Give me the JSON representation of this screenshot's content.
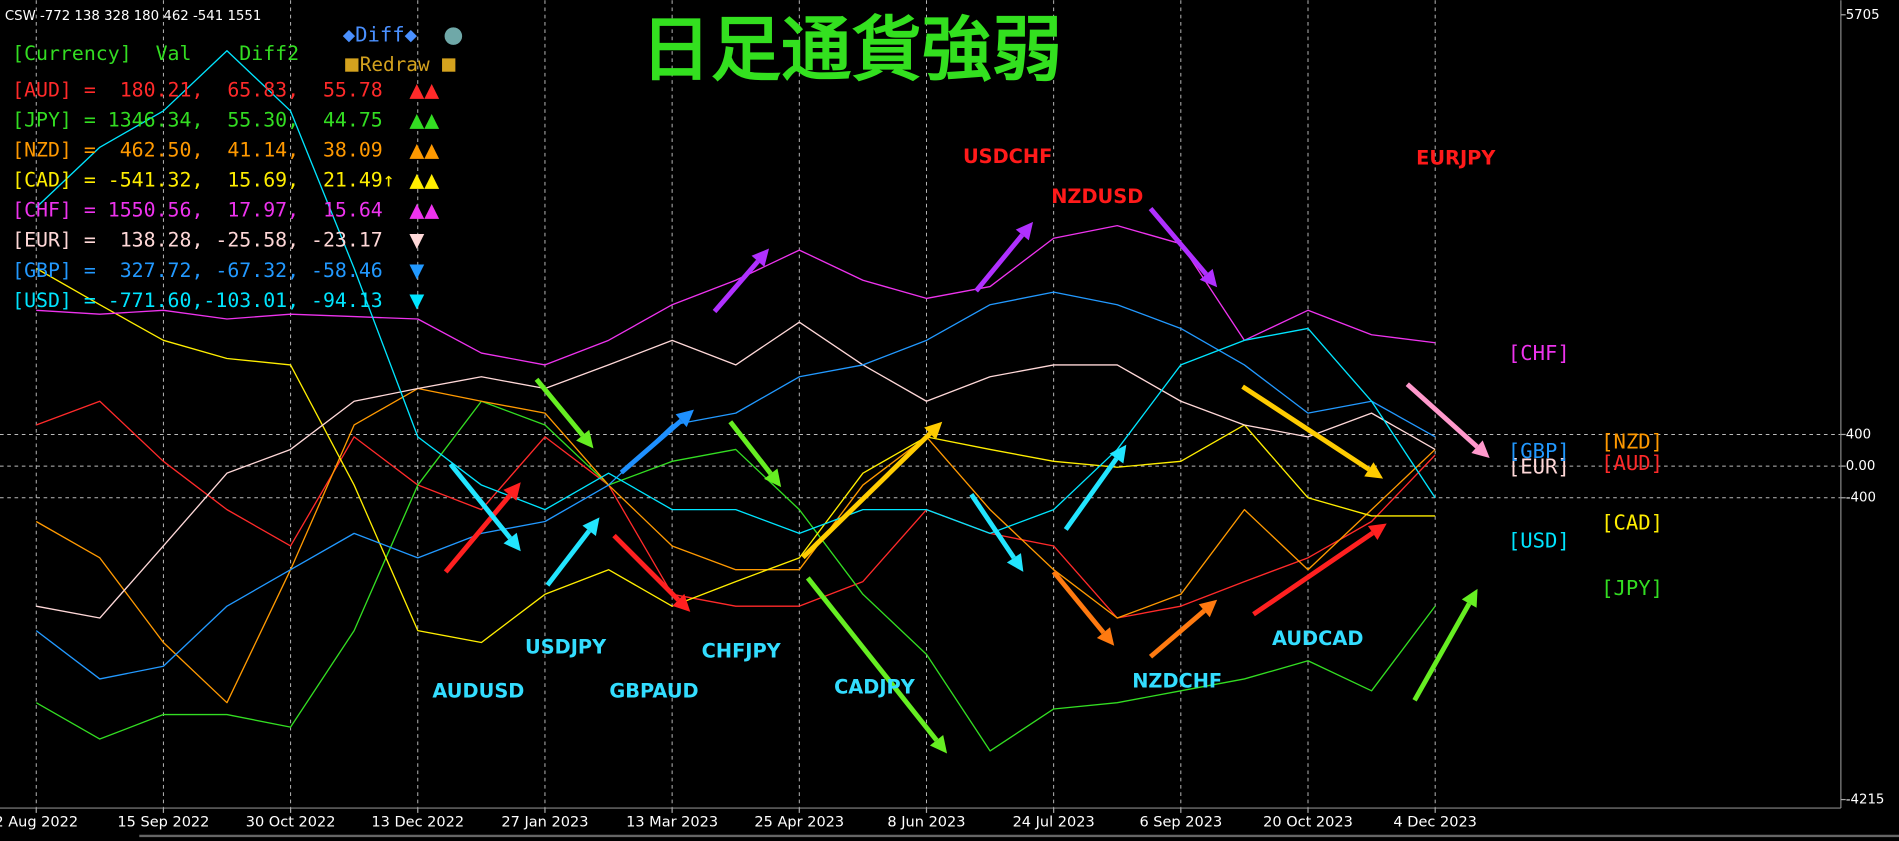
{
  "chart_data": {
    "type": "line",
    "header": "CSW -772 138 328 180 462 -541 1551",
    "title": "日足通貨強弱",
    "title_color": "#33e01f",
    "controls": {
      "diff_button": "◆Diff◆",
      "circle": "●",
      "redraw_button": "Redraw"
    },
    "panel": {
      "header": "[Currency]  Val    Diff2",
      "rows": [
        {
          "text": "[AUD] =  180.21,  65.83,  55.78",
          "mark": "▲▲"
        },
        {
          "text": "[JPY] = 1346.34,  55.30,  44.75",
          "mark": "▲▲"
        },
        {
          "text": "[NZD] =  462.50,  41.14,  38.09",
          "mark": "▲▲"
        },
        {
          "text": "[CAD] = -541.32,  15.69,  21.49↑",
          "mark": "▲▲"
        },
        {
          "text": "[CHF] = 1550.56,  17.97,  15.64",
          "mark": "▲▲"
        },
        {
          "text": "[EUR] =  138.28, -25.58, -23.17",
          "mark": "▼"
        },
        {
          "text": "[GBP] =  327.72, -67.32, -58.46",
          "mark": "▼"
        },
        {
          "text": "[USD] = -771.60,-103.01, -94.13",
          "mark": "▼"
        }
      ]
    },
    "x": [
      0,
      1,
      2,
      3,
      4,
      5,
      6,
      7,
      8,
      9,
      10,
      11,
      12,
      13,
      14,
      15,
      16,
      17,
      18,
      19,
      20,
      21,
      22
    ],
    "xlim": [
      -0.57,
      28.38
    ],
    "xticks": [
      {
        "value": 0,
        "label": "2 Aug 2022"
      },
      {
        "value": 2,
        "label": "15 Sep 2022"
      },
      {
        "value": 4,
        "label": "30 Oct 2022"
      },
      {
        "value": 6,
        "label": "13 Dec 2022"
      },
      {
        "value": 8,
        "label": "27 Jan 2023"
      },
      {
        "value": 10,
        "label": "13 Mar 2023"
      },
      {
        "value": 12,
        "label": "25 Apr 2023"
      },
      {
        "value": 14,
        "label": "8 Jun 2023"
      },
      {
        "value": 16,
        "label": "24 Jul 2023"
      },
      {
        "value": 18,
        "label": "6 Sep 2023"
      },
      {
        "value": 20,
        "label": "20 Oct 2023"
      },
      {
        "value": 22,
        "label": "4 Dec 2023"
      }
    ],
    "ylim": [
      -4215,
      5705
    ],
    "yticks": [
      5705,
      400,
      {
        "value": 0,
        "label": "0.00"
      },
      -400,
      -4215
    ],
    "grid": true,
    "series": [
      {
        "name": "[AUD]",
        "color": "#ff2a2a",
        "values": [
          520,
          820,
          60,
          -550,
          -1010,
          370,
          -240,
          -550,
          370,
          -240,
          -1620,
          -1770,
          -1770,
          -1460,
          -550,
          -850,
          -1010,
          -1920,
          -1770,
          -1460,
          -1160,
          -700,
          140
        ]
      },
      {
        "name": "[JPY]",
        "color": "#33dd22",
        "values": [
          -2990,
          -3450,
          -3140,
          -3140,
          -3300,
          -2080,
          -240,
          820,
          520,
          -240,
          60,
          210,
          -550,
          -1620,
          -2380,
          -3600,
          -3070,
          -2990,
          -2840,
          -2690,
          -2460,
          -2840,
          -1770
        ]
      },
      {
        "name": "[NZD]",
        "color": "#ff9900",
        "values": [
          -700,
          -1160,
          -2230,
          -2990,
          -1310,
          520,
          980,
          820,
          670,
          -240,
          -1010,
          -1310,
          -1310,
          -240,
          370,
          -550,
          -1310,
          -1920,
          -1620,
          -550,
          -1310,
          -550,
          210
        ]
      },
      {
        "name": "[CAD]",
        "color": "#ffee00",
        "values": [
          2500,
          2040,
          1590,
          1360,
          1280,
          -240,
          -2080,
          -2230,
          -1620,
          -1310,
          -1770,
          -1460,
          -1160,
          -90,
          370,
          210,
          60,
          -15,
          60,
          520,
          -400,
          -630,
          -630
        ]
      },
      {
        "name": "[CHF]",
        "color": "#ee33ee",
        "values": [
          1970,
          1920,
          1970,
          1860,
          1920,
          1890,
          1860,
          1430,
          1280,
          1590,
          2040,
          2350,
          2730,
          2350,
          2120,
          2270,
          2880,
          3040,
          2810,
          1590,
          1970,
          1660,
          1560
        ]
      },
      {
        "name": "[EUR]",
        "color": "#ffd8d8",
        "values": [
          -1770,
          -1920,
          -1010,
          -90,
          210,
          820,
          980,
          1130,
          980,
          1280,
          1590,
          1280,
          1820,
          1280,
          820,
          1130,
          1280,
          1280,
          820,
          520,
          370,
          670,
          210
        ]
      },
      {
        "name": "[GBP]",
        "color": "#2299ff",
        "values": [
          -2080,
          -2690,
          -2530,
          -1770,
          -1310,
          -850,
          -1160,
          -850,
          -700,
          -240,
          520,
          670,
          1130,
          1280,
          1590,
          2040,
          2200,
          2040,
          1740,
          1280,
          670,
          820,
          370
        ]
      },
      {
        "name": "[USD]",
        "color": "#00e5ff",
        "values": [
          3270,
          4030,
          4490,
          5250,
          4490,
          2500,
          370,
          -240,
          -550,
          -90,
          -550,
          -550,
          -850,
          -550,
          -550,
          -850,
          -550,
          210,
          1280,
          1590,
          1740,
          820,
          -400
        ]
      }
    ],
    "annotations": [
      {
        "text": "AUDUSD",
        "color": "#33ddff"
      },
      {
        "text": "USDJPY",
        "color": "#33ddff"
      },
      {
        "text": "GBPAUD",
        "color": "#33ddff"
      },
      {
        "text": "CHFJPY",
        "color": "#33ddff"
      },
      {
        "text": "CADJPY",
        "color": "#33ddff"
      },
      {
        "text": "NZDCHF",
        "color": "#33ddff"
      },
      {
        "text": "AUDCAD",
        "color": "#33ddff"
      },
      {
        "text": "USDCHF",
        "color": "#ff1a1a"
      },
      {
        "text": "NZDUSD",
        "color": "#ff1a1a"
      },
      {
        "text": "EURJPY",
        "color": "#ff1a1a"
      }
    ]
  }
}
